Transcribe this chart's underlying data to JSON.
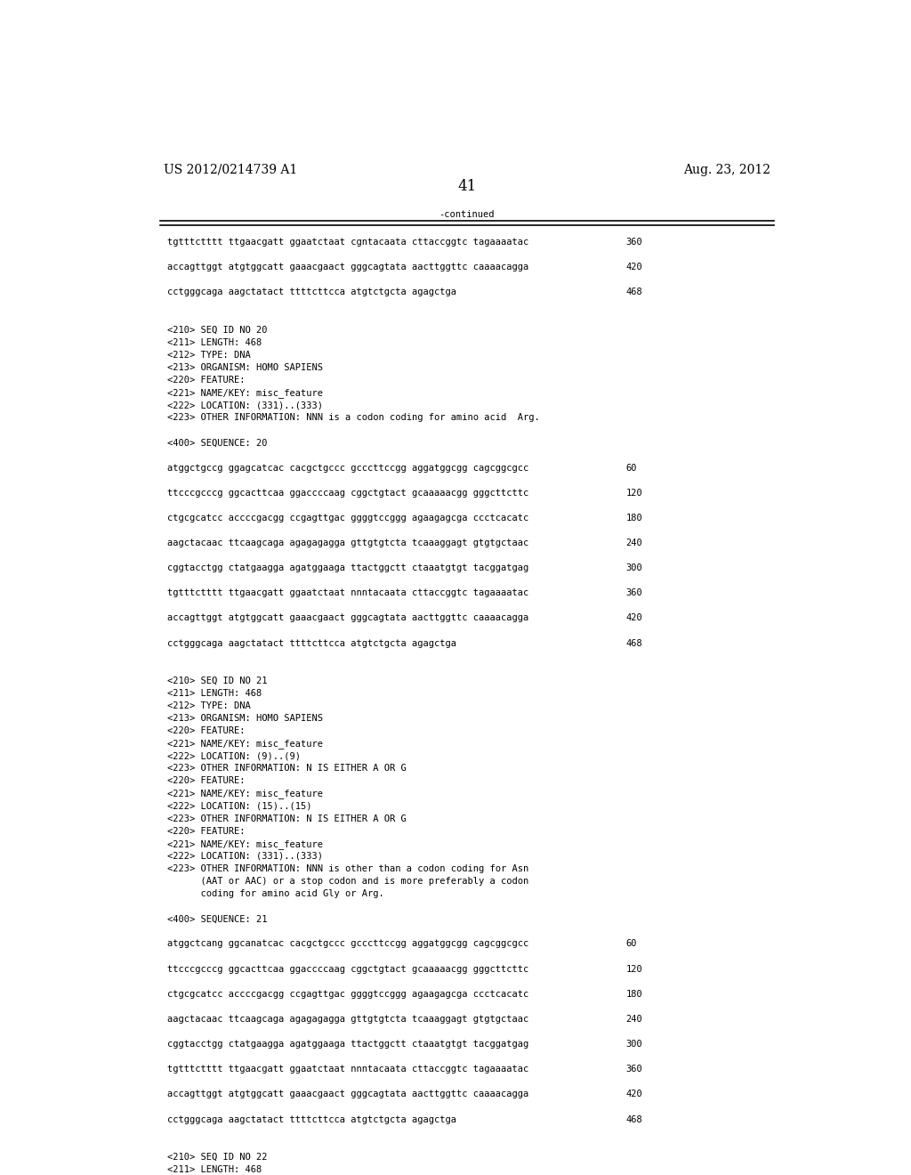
{
  "header_left": "US 2012/0214739 A1",
  "header_right": "Aug. 23, 2012",
  "page_number": "41",
  "continued_label": "-continued",
  "background_color": "#ffffff",
  "text_color": "#000000",
  "mono_font": "DejaVu Sans Mono",
  "serif_font": "DejaVu Serif",
  "content_blocks": [
    {
      "text": "tgtttctttt ttgaacgatt ggaatctaat cgntacaata cttaccggtc tagaaaatac",
      "num": "360"
    },
    {
      "text": "",
      "num": ""
    },
    {
      "text": "accagttggt atgtggcatt gaaacgaact gggcagtata aacttggttc caaaacagga",
      "num": "420"
    },
    {
      "text": "",
      "num": ""
    },
    {
      "text": "cctgggcaga aagctatact ttttcttcca atgtctgcta agagctga",
      "num": "468"
    },
    {
      "text": "",
      "num": ""
    },
    {
      "text": "",
      "num": ""
    },
    {
      "text": "<210> SEQ ID NO 20",
      "num": ""
    },
    {
      "text": "<211> LENGTH: 468",
      "num": ""
    },
    {
      "text": "<212> TYPE: DNA",
      "num": ""
    },
    {
      "text": "<213> ORGANISM: HOMO SAPIENS",
      "num": ""
    },
    {
      "text": "<220> FEATURE:",
      "num": ""
    },
    {
      "text": "<221> NAME/KEY: misc_feature",
      "num": ""
    },
    {
      "text": "<222> LOCATION: (331)..(333)",
      "num": ""
    },
    {
      "text": "<223> OTHER INFORMATION: NNN is a codon coding for amino acid  Arg.",
      "num": ""
    },
    {
      "text": "",
      "num": ""
    },
    {
      "text": "<400> SEQUENCE: 20",
      "num": ""
    },
    {
      "text": "",
      "num": ""
    },
    {
      "text": "atggctgccg ggagcatcac cacgctgccc gcccttccgg aggatggcgg cagcggcgcc",
      "num": "60"
    },
    {
      "text": "",
      "num": ""
    },
    {
      "text": "ttcccgcccg ggcacttcaa ggaccccaag cggctgtact gcaaaaacgg gggcttcttc",
      "num": "120"
    },
    {
      "text": "",
      "num": ""
    },
    {
      "text": "ctgcgcatcc accccgacgg ccgagttgac ggggtccggg agaagagcga ccctcacatc",
      "num": "180"
    },
    {
      "text": "",
      "num": ""
    },
    {
      "text": "aagctacaac ttcaagcaga agagagagga gttgtgtcta tcaaaggagt gtgtgctaac",
      "num": "240"
    },
    {
      "text": "",
      "num": ""
    },
    {
      "text": "cggtacctgg ctatgaagga agatggaaga ttactggctt ctaaatgtgt tacggatgag",
      "num": "300"
    },
    {
      "text": "",
      "num": ""
    },
    {
      "text": "tgtttctttt ttgaacgatt ggaatctaat nnntacaata cttaccggtc tagaaaatac",
      "num": "360"
    },
    {
      "text": "",
      "num": ""
    },
    {
      "text": "accagttggt atgtggcatt gaaacgaact gggcagtata aacttggttc caaaacagga",
      "num": "420"
    },
    {
      "text": "",
      "num": ""
    },
    {
      "text": "cctgggcaga aagctatact ttttcttcca atgtctgcta agagctga",
      "num": "468"
    },
    {
      "text": "",
      "num": ""
    },
    {
      "text": "",
      "num": ""
    },
    {
      "text": "<210> SEQ ID NO 21",
      "num": ""
    },
    {
      "text": "<211> LENGTH: 468",
      "num": ""
    },
    {
      "text": "<212> TYPE: DNA",
      "num": ""
    },
    {
      "text": "<213> ORGANISM: HOMO SAPIENS",
      "num": ""
    },
    {
      "text": "<220> FEATURE:",
      "num": ""
    },
    {
      "text": "<221> NAME/KEY: misc_feature",
      "num": ""
    },
    {
      "text": "<222> LOCATION: (9)..(9)",
      "num": ""
    },
    {
      "text": "<223> OTHER INFORMATION: N IS EITHER A OR G",
      "num": ""
    },
    {
      "text": "<220> FEATURE:",
      "num": ""
    },
    {
      "text": "<221> NAME/KEY: misc_feature",
      "num": ""
    },
    {
      "text": "<222> LOCATION: (15)..(15)",
      "num": ""
    },
    {
      "text": "<223> OTHER INFORMATION: N IS EITHER A OR G",
      "num": ""
    },
    {
      "text": "<220> FEATURE:",
      "num": ""
    },
    {
      "text": "<221> NAME/KEY: misc_feature",
      "num": ""
    },
    {
      "text": "<222> LOCATION: (331)..(333)",
      "num": ""
    },
    {
      "text": "<223> OTHER INFORMATION: NNN is other than a codon coding for Asn",
      "num": ""
    },
    {
      "text": "      (AAT or AAC) or a stop codon and is more preferably a codon",
      "num": ""
    },
    {
      "text": "      coding for amino acid Gly or Arg.",
      "num": ""
    },
    {
      "text": "",
      "num": ""
    },
    {
      "text": "<400> SEQUENCE: 21",
      "num": ""
    },
    {
      "text": "",
      "num": ""
    },
    {
      "text": "atggctcang ggcanatcac cacgctgccc gcccttccgg aggatggcgg cagcggcgcc",
      "num": "60"
    },
    {
      "text": "",
      "num": ""
    },
    {
      "text": "ttcccgcccg ggcacttcaa ggaccccaag cggctgtact gcaaaaacgg gggcttcttc",
      "num": "120"
    },
    {
      "text": "",
      "num": ""
    },
    {
      "text": "ctgcgcatcc accccgacgg ccgagttgac ggggtccggg agaagagcga ccctcacatc",
      "num": "180"
    },
    {
      "text": "",
      "num": ""
    },
    {
      "text": "aagctacaac ttcaagcaga agagagagga gttgtgtcta tcaaaggagt gtgtgctaac",
      "num": "240"
    },
    {
      "text": "",
      "num": ""
    },
    {
      "text": "cggtacctgg ctatgaagga agatggaaga ttactggctt ctaaatgtgt tacggatgag",
      "num": "300"
    },
    {
      "text": "",
      "num": ""
    },
    {
      "text": "tgtttctttt ttgaacgatt ggaatctaat nnntacaata cttaccggtc tagaaaatac",
      "num": "360"
    },
    {
      "text": "",
      "num": ""
    },
    {
      "text": "accagttggt atgtggcatt gaaacgaact gggcagtata aacttggttc caaaacagga",
      "num": "420"
    },
    {
      "text": "",
      "num": ""
    },
    {
      "text": "cctgggcaga aagctatact ttttcttcca atgtctgcta agagctga",
      "num": "468"
    },
    {
      "text": "",
      "num": ""
    },
    {
      "text": "",
      "num": ""
    },
    {
      "text": "<210> SEQ ID NO 22",
      "num": ""
    },
    {
      "text": "<211> LENGTH: 468",
      "num": ""
    }
  ]
}
